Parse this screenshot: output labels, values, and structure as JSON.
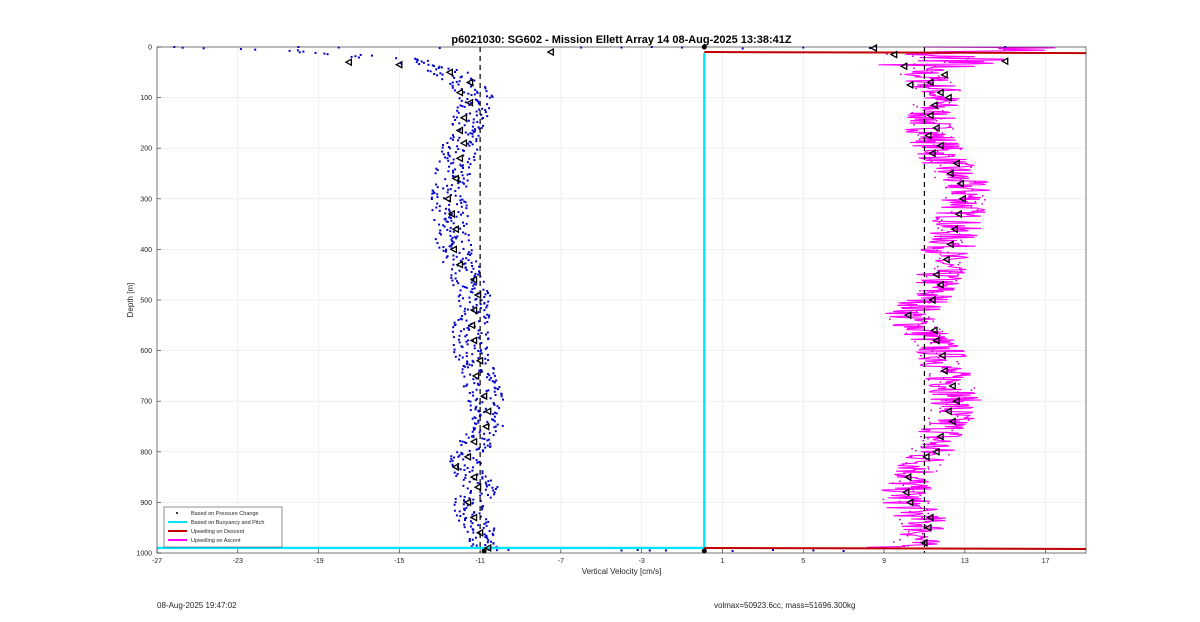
{
  "chart_data": {
    "type": "scatter",
    "title": "p6021030: SG602 - Mission Ellett Array 14 08-Aug-2025 13:38:41Z",
    "xlabel": "Vertical Velocity [cm/s]",
    "ylabel": "Depth [m]",
    "xlim": [
      -27,
      19
    ],
    "ylim": [
      0,
      1000
    ],
    "y_reversed": true,
    "grid": true,
    "x_ticks": [
      -27,
      -23,
      -19,
      -15,
      -11,
      -7,
      -3,
      1,
      5,
      9,
      13,
      17
    ],
    "y_ticks": [
      0,
      100,
      200,
      300,
      400,
      500,
      600,
      700,
      800,
      900,
      1000
    ],
    "legend": {
      "location": "bottom-left",
      "entries": [
        {
          "label": "Based on Pressure Change",
          "color": "#000000",
          "style": "dot"
        },
        {
          "label": "Based on Buoyancy and Pitch",
          "color": "#00e5ff",
          "style": "line"
        },
        {
          "label": "Upwelling on Descent",
          "color": "#c00000",
          "style": "line"
        },
        {
          "label": "Upwelling on Ascent",
          "color": "#ff00ff",
          "style": "line"
        }
      ]
    },
    "colors": {
      "descent_points": "#0000cc",
      "buoyancy": "#00e5ff",
      "upwelling_descent": "#c00000",
      "upwelling_ascent": "#ff00ff",
      "mean_line": "#000000"
    },
    "buoyancy_velocity": {
      "descent": [
        {
          "x": -27,
          "y": 990
        },
        {
          "x": 0.1,
          "y": 990
        },
        {
          "x": 0.1,
          "y": 12
        }
      ]
    },
    "upwelling_descent": [
      {
        "x": 0.1,
        "y": 10
      },
      {
        "x": 19,
        "y": 12
      },
      {
        "x": 0.1,
        "y": 990
      },
      {
        "x": 19,
        "y": 992
      }
    ],
    "mean_lines": {
      "descent": -11,
      "ascent": 11
    },
    "descent_velocity_profile": [
      [
        0,
        -27
      ],
      [
        3,
        -25
      ],
      [
        5,
        -22
      ],
      [
        8,
        -20
      ],
      [
        12,
        -18
      ],
      [
        18,
        -16.5
      ],
      [
        25,
        -15
      ],
      [
        35,
        -13.5
      ],
      [
        50,
        -12.5
      ],
      [
        65,
        -12
      ],
      [
        80,
        -11.5
      ],
      [
        100,
        -11.2
      ],
      [
        120,
        -11.3
      ],
      [
        150,
        -11.6
      ],
      [
        180,
        -11.8
      ],
      [
        200,
        -12
      ],
      [
        230,
        -12.2
      ],
      [
        260,
        -12.4
      ],
      [
        300,
        -12.6
      ],
      [
        330,
        -12.5
      ],
      [
        360,
        -12.3
      ],
      [
        400,
        -12.3
      ],
      [
        430,
        -12
      ],
      [
        460,
        -11.5
      ],
      [
        500,
        -11.3
      ],
      [
        540,
        -11.4
      ],
      [
        580,
        -11.5
      ],
      [
        620,
        -11.3
      ],
      [
        660,
        -11
      ],
      [
        700,
        -10.7
      ],
      [
        740,
        -10.5
      ],
      [
        770,
        -11
      ],
      [
        800,
        -11.5
      ],
      [
        820,
        -11.9
      ],
      [
        840,
        -11.4
      ],
      [
        870,
        -11
      ],
      [
        900,
        -11.4
      ],
      [
        930,
        -11.6
      ],
      [
        960,
        -11
      ],
      [
        990,
        -10.8
      ]
    ],
    "descent_markers": [
      [
        10,
        -7.5
      ],
      [
        30,
        -17.5
      ],
      [
        35,
        -15
      ],
      [
        50,
        -12.5
      ],
      [
        70,
        -11.5
      ],
      [
        90,
        -12
      ],
      [
        110,
        -11.5
      ],
      [
        140,
        -11.8
      ],
      [
        165,
        -12
      ],
      [
        190,
        -11.8
      ],
      [
        220,
        -12
      ],
      [
        260,
        -12.2
      ],
      [
        300,
        -12.6
      ],
      [
        330,
        -12.4
      ],
      [
        360,
        -12.2
      ],
      [
        400,
        -12.3
      ],
      [
        430,
        -12
      ],
      [
        460,
        -11.3
      ],
      [
        490,
        -11.1
      ],
      [
        520,
        -11.3
      ],
      [
        550,
        -11.4
      ],
      [
        580,
        -11.3
      ],
      [
        620,
        -11
      ],
      [
        650,
        -11.2
      ],
      [
        690,
        -10.8
      ],
      [
        720,
        -10.6
      ],
      [
        750,
        -10.7
      ],
      [
        780,
        -11.3
      ],
      [
        810,
        -11.6
      ],
      [
        830,
        -12.2
      ],
      [
        850,
        -11.3
      ],
      [
        870,
        -11.1
      ],
      [
        900,
        -11.6
      ],
      [
        930,
        -11.3
      ],
      [
        960,
        -11
      ],
      [
        990,
        -10.6
      ]
    ],
    "ascent_velocity_profile": [
      [
        0,
        14
      ],
      [
        5,
        17
      ],
      [
        10,
        12
      ],
      [
        15,
        9.5
      ],
      [
        20,
        12
      ],
      [
        25,
        14
      ],
      [
        35,
        11
      ],
      [
        50,
        10.8
      ],
      [
        70,
        11.3
      ],
      [
        90,
        11.8
      ],
      [
        110,
        11.6
      ],
      [
        130,
        11.3
      ],
      [
        150,
        11.2
      ],
      [
        170,
        11.4
      ],
      [
        190,
        11.6
      ],
      [
        210,
        11.8
      ],
      [
        230,
        12.1
      ],
      [
        250,
        12.4
      ],
      [
        270,
        12.9
      ],
      [
        290,
        13.2
      ],
      [
        310,
        13
      ],
      [
        330,
        12.8
      ],
      [
        350,
        12.6
      ],
      [
        370,
        12.4
      ],
      [
        390,
        12.3
      ],
      [
        410,
        12
      ],
      [
        430,
        11.9
      ],
      [
        450,
        11.7
      ],
      [
        470,
        11.6
      ],
      [
        490,
        11.4
      ],
      [
        510,
        10.9
      ],
      [
        530,
        10.2
      ],
      [
        550,
        10.6
      ],
      [
        570,
        11.2
      ],
      [
        590,
        11.6
      ],
      [
        610,
        11.9
      ],
      [
        630,
        12
      ],
      [
        650,
        12.1
      ],
      [
        670,
        12.4
      ],
      [
        690,
        12.6
      ],
      [
        710,
        12.5
      ],
      [
        730,
        12.3
      ],
      [
        750,
        12.1
      ],
      [
        770,
        11.8
      ],
      [
        790,
        11.5
      ],
      [
        810,
        11.1
      ],
      [
        830,
        10.8
      ],
      [
        850,
        10.4
      ],
      [
        870,
        10.1
      ],
      [
        890,
        10
      ],
      [
        910,
        10.3
      ],
      [
        930,
        10.8
      ],
      [
        950,
        11.1
      ],
      [
        970,
        10.8
      ],
      [
        985,
        10.3
      ],
      [
        990,
        9
      ]
    ],
    "ascent_markers": [
      [
        2,
        8.5
      ],
      [
        15,
        9.5
      ],
      [
        28,
        15
      ],
      [
        38,
        10
      ],
      [
        55,
        12
      ],
      [
        70,
        11.3
      ],
      [
        75,
        10.3
      ],
      [
        90,
        11.8
      ],
      [
        100,
        12.2
      ],
      [
        115,
        11.5
      ],
      [
        135,
        11.3
      ],
      [
        160,
        11.6
      ],
      [
        175,
        11.2
      ],
      [
        195,
        11.8
      ],
      [
        210,
        11.4
      ],
      [
        230,
        12.6
      ],
      [
        250,
        12.3
      ],
      [
        270,
        12.8
      ],
      [
        300,
        12.9
      ],
      [
        330,
        12.7
      ],
      [
        360,
        12.5
      ],
      [
        390,
        12.3
      ],
      [
        420,
        12.1
      ],
      [
        450,
        11.6
      ],
      [
        470,
        11.8
      ],
      [
        500,
        11.4
      ],
      [
        530,
        10.2
      ],
      [
        560,
        11.5
      ],
      [
        580,
        11.6
      ],
      [
        610,
        11.9
      ],
      [
        640,
        12
      ],
      [
        670,
        12.4
      ],
      [
        700,
        12.6
      ],
      [
        720,
        12.2
      ],
      [
        740,
        12.4
      ],
      [
        770,
        11.8
      ],
      [
        800,
        11.6
      ],
      [
        810,
        11.1
      ],
      [
        850,
        10.2
      ],
      [
        880,
        10.1
      ],
      [
        900,
        10.3
      ],
      [
        930,
        11.3
      ],
      [
        950,
        11.2
      ],
      [
        980,
        11
      ]
    ]
  },
  "footer": {
    "timestamp": "08-Aug-2025 19:47:02",
    "info": "volmax=50923.6cc, mass=51696.300kg"
  }
}
